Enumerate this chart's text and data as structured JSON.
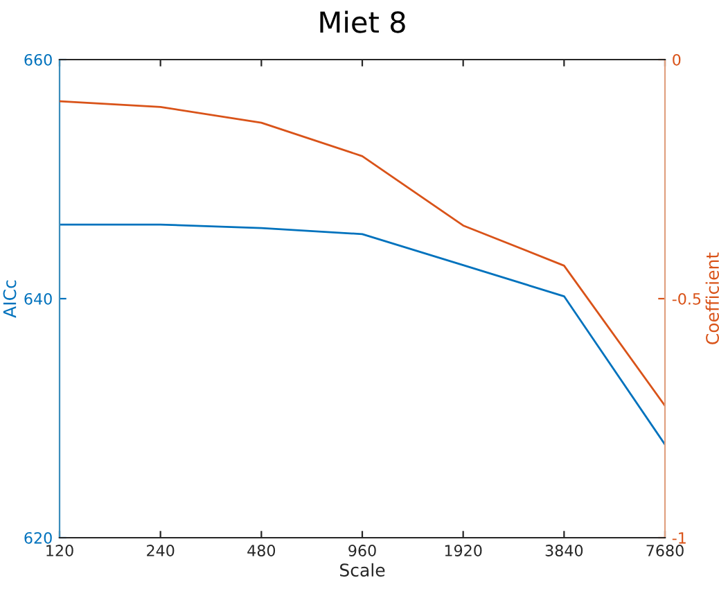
{
  "chart_data": {
    "type": "line",
    "title": "Miet 8",
    "xlabel": "Scale",
    "ylabel": "AICc",
    "y2label": "Coefficient",
    "x": [
      120,
      240,
      480,
      960,
      1920,
      3840,
      7680
    ],
    "log": "x",
    "xlim": [
      120,
      7680
    ],
    "xticks": [
      120,
      240,
      480,
      960,
      1920,
      3840,
      7680
    ],
    "ylim": [
      620,
      660
    ],
    "yticks": [
      620,
      640,
      660
    ],
    "y2lim": [
      -1,
      0
    ],
    "y2ticks": [
      -1,
      -0.5,
      0
    ],
    "grid": false,
    "legend": false,
    "series": [
      {
        "color": "#0072bd",
        "values": [
          646.2,
          646.2,
          645.9,
          645.4,
          642.8,
          640.2,
          627.8
        ]
      },
      {
        "color": "#d95319",
        "axis": "y2",
        "values": [
          -0.087,
          -0.099,
          -0.132,
          -0.202,
          -0.347,
          -0.431,
          -0.724
        ]
      }
    ]
  }
}
